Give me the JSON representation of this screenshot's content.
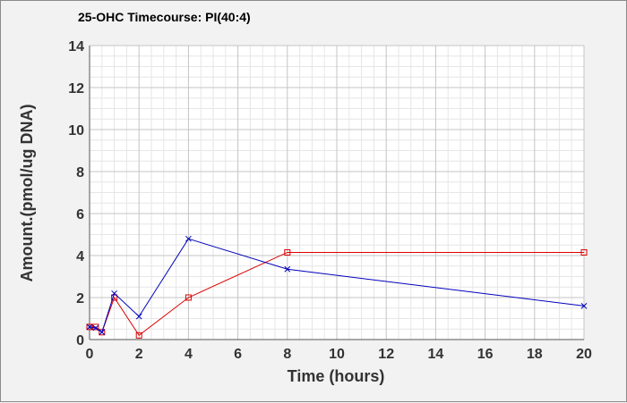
{
  "chart_data": {
    "type": "line",
    "title": "25-OHC Timecourse: PI(40:4)",
    "xlabel": "Time (hours)",
    "ylabel": "Amount.(pmol/ug DNA)",
    "xlim": [
      0,
      20
    ],
    "ylim": [
      0,
      14
    ],
    "xticks": [
      0,
      2,
      4,
      6,
      8,
      10,
      12,
      14,
      16,
      18,
      20
    ],
    "yticks": [
      0,
      2,
      4,
      6,
      8,
      10,
      12,
      14
    ],
    "grid": true,
    "series": [
      {
        "color": "#dd0000",
        "marker": "square",
        "points": [
          [
            0,
            0.6
          ],
          [
            0.25,
            0.6
          ],
          [
            0.5,
            0.35
          ],
          [
            1,
            2.0
          ],
          [
            2,
            0.2
          ],
          [
            4,
            2.0
          ],
          [
            8,
            4.15
          ],
          [
            20,
            4.15
          ]
        ]
      },
      {
        "color": "#0000bb",
        "marker": "x",
        "points": [
          [
            0,
            0.6
          ],
          [
            0.25,
            0.55
          ],
          [
            0.5,
            0.35
          ],
          [
            1,
            2.2
          ],
          [
            2,
            1.1
          ],
          [
            4,
            4.8
          ],
          [
            8,
            3.35
          ],
          [
            20,
            1.6
          ]
        ]
      }
    ]
  }
}
